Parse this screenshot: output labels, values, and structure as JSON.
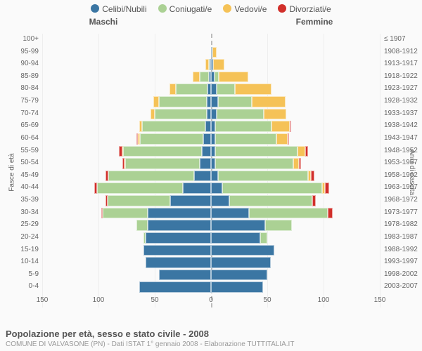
{
  "colors": {
    "celibi": "#3b76a3",
    "coniugati": "#abd194",
    "vedovi": "#f5c257",
    "divorziati": "#d12f2a",
    "bg": "#fafafa",
    "grid": "#eeeeee",
    "mid": "#bbbbbb",
    "text": "#666666"
  },
  "legend": [
    {
      "label": "Celibi/Nubili",
      "colorKey": "celibi"
    },
    {
      "label": "Coniugati/e",
      "colorKey": "coniugati"
    },
    {
      "label": "Vedovi/e",
      "colorKey": "vedovi"
    },
    {
      "label": "Divorziati/e",
      "colorKey": "divorziati"
    }
  ],
  "headers": {
    "left": "Maschi",
    "right": "Femmine"
  },
  "xaxis": {
    "max": 150,
    "ticks": [
      150,
      100,
      50,
      0,
      50,
      100,
      150
    ]
  },
  "yaxis_left_title": "Fasce di età",
  "yaxis_right_title": "Anni di nascita",
  "rows": [
    {
      "age": "100+",
      "birth": "≤ 1907",
      "m": {
        "cel": 0,
        "con": 0,
        "ved": 0,
        "div": 0
      },
      "f": {
        "cel": 0,
        "con": 0,
        "ved": 0,
        "div": 0
      }
    },
    {
      "age": "95-99",
      "birth": "1908-1912",
      "m": {
        "cel": 0,
        "con": 0,
        "ved": 0,
        "div": 0
      },
      "f": {
        "cel": 1,
        "con": 0,
        "ved": 4,
        "div": 0
      }
    },
    {
      "age": "90-94",
      "birth": "1913-1917",
      "m": {
        "cel": 1,
        "con": 1,
        "ved": 3,
        "div": 0
      },
      "f": {
        "cel": 2,
        "con": 0,
        "ved": 10,
        "div": 0
      }
    },
    {
      "age": "85-89",
      "birth": "1918-1922",
      "m": {
        "cel": 2,
        "con": 8,
        "ved": 6,
        "div": 0
      },
      "f": {
        "cel": 3,
        "con": 4,
        "ved": 26,
        "div": 0
      }
    },
    {
      "age": "80-84",
      "birth": "1923-1927",
      "m": {
        "cel": 3,
        "con": 28,
        "ved": 6,
        "div": 0
      },
      "f": {
        "cel": 5,
        "con": 16,
        "ved": 33,
        "div": 0
      }
    },
    {
      "age": "75-79",
      "birth": "1928-1932",
      "m": {
        "cel": 4,
        "con": 42,
        "ved": 5,
        "div": 0
      },
      "f": {
        "cel": 6,
        "con": 30,
        "ved": 30,
        "div": 0
      }
    },
    {
      "age": "70-74",
      "birth": "1933-1937",
      "m": {
        "cel": 4,
        "con": 46,
        "ved": 4,
        "div": 0
      },
      "f": {
        "cel": 5,
        "con": 42,
        "ved": 20,
        "div": 0
      }
    },
    {
      "age": "65-69",
      "birth": "1938-1942",
      "m": {
        "cel": 5,
        "con": 56,
        "ved": 3,
        "div": 0
      },
      "f": {
        "cel": 4,
        "con": 50,
        "ved": 16,
        "div": 1
      }
    },
    {
      "age": "60-64",
      "birth": "1943-1947",
      "m": {
        "cel": 7,
        "con": 56,
        "ved": 2,
        "div": 1
      },
      "f": {
        "cel": 4,
        "con": 54,
        "ved": 10,
        "div": 1
      }
    },
    {
      "age": "55-59",
      "birth": "1948-1952",
      "m": {
        "cel": 8,
        "con": 70,
        "ved": 1,
        "div": 3
      },
      "f": {
        "cel": 4,
        "con": 73,
        "ved": 7,
        "div": 2
      }
    },
    {
      "age": "50-54",
      "birth": "1953-1957",
      "m": {
        "cel": 10,
        "con": 66,
        "ved": 1,
        "div": 2
      },
      "f": {
        "cel": 4,
        "con": 69,
        "ved": 5,
        "div": 2
      }
    },
    {
      "age": "45-49",
      "birth": "1958-1962",
      "m": {
        "cel": 15,
        "con": 76,
        "ved": 0,
        "div": 3
      },
      "f": {
        "cel": 6,
        "con": 80,
        "ved": 3,
        "div": 3
      }
    },
    {
      "age": "40-44",
      "birth": "1963-1967",
      "m": {
        "cel": 25,
        "con": 76,
        "ved": 0,
        "div": 3
      },
      "f": {
        "cel": 10,
        "con": 89,
        "ved": 2,
        "div": 4
      }
    },
    {
      "age": "35-39",
      "birth": "1968-1972",
      "m": {
        "cel": 36,
        "con": 56,
        "ved": 0,
        "div": 2
      },
      "f": {
        "cel": 16,
        "con": 74,
        "ved": 0,
        "div": 3
      }
    },
    {
      "age": "30-34",
      "birth": "1973-1977",
      "m": {
        "cel": 56,
        "con": 40,
        "ved": 0,
        "div": 1
      },
      "f": {
        "cel": 34,
        "con": 70,
        "ved": 0,
        "div": 4
      }
    },
    {
      "age": "25-29",
      "birth": "1978-1982",
      "m": {
        "cel": 56,
        "con": 10,
        "ved": 0,
        "div": 0
      },
      "f": {
        "cel": 48,
        "con": 24,
        "ved": 0,
        "div": 0
      }
    },
    {
      "age": "20-24",
      "birth": "1983-1987",
      "m": {
        "cel": 58,
        "con": 2,
        "ved": 0,
        "div": 0
      },
      "f": {
        "cel": 44,
        "con": 6,
        "ved": 0,
        "div": 0
      }
    },
    {
      "age": "15-19",
      "birth": "1988-1992",
      "m": {
        "cel": 60,
        "con": 0,
        "ved": 0,
        "div": 0
      },
      "f": {
        "cel": 56,
        "con": 0,
        "ved": 0,
        "div": 0
      }
    },
    {
      "age": "10-14",
      "birth": "1993-1997",
      "m": {
        "cel": 58,
        "con": 0,
        "ved": 0,
        "div": 0
      },
      "f": {
        "cel": 53,
        "con": 0,
        "ved": 0,
        "div": 0
      }
    },
    {
      "age": "5-9",
      "birth": "1998-2002",
      "m": {
        "cel": 46,
        "con": 0,
        "ved": 0,
        "div": 0
      },
      "f": {
        "cel": 50,
        "con": 0,
        "ved": 0,
        "div": 0
      }
    },
    {
      "age": "0-4",
      "birth": "2003-2007",
      "m": {
        "cel": 64,
        "con": 0,
        "ved": 0,
        "div": 0
      },
      "f": {
        "cel": 46,
        "con": 0,
        "ved": 0,
        "div": 0
      }
    }
  ],
  "title": "Popolazione per età, sesso e stato civile - 2008",
  "subtitle": "COMUNE DI VALVASONE (PN) - Dati ISTAT 1° gennaio 2008 - Elaborazione TUTTITALIA.IT"
}
